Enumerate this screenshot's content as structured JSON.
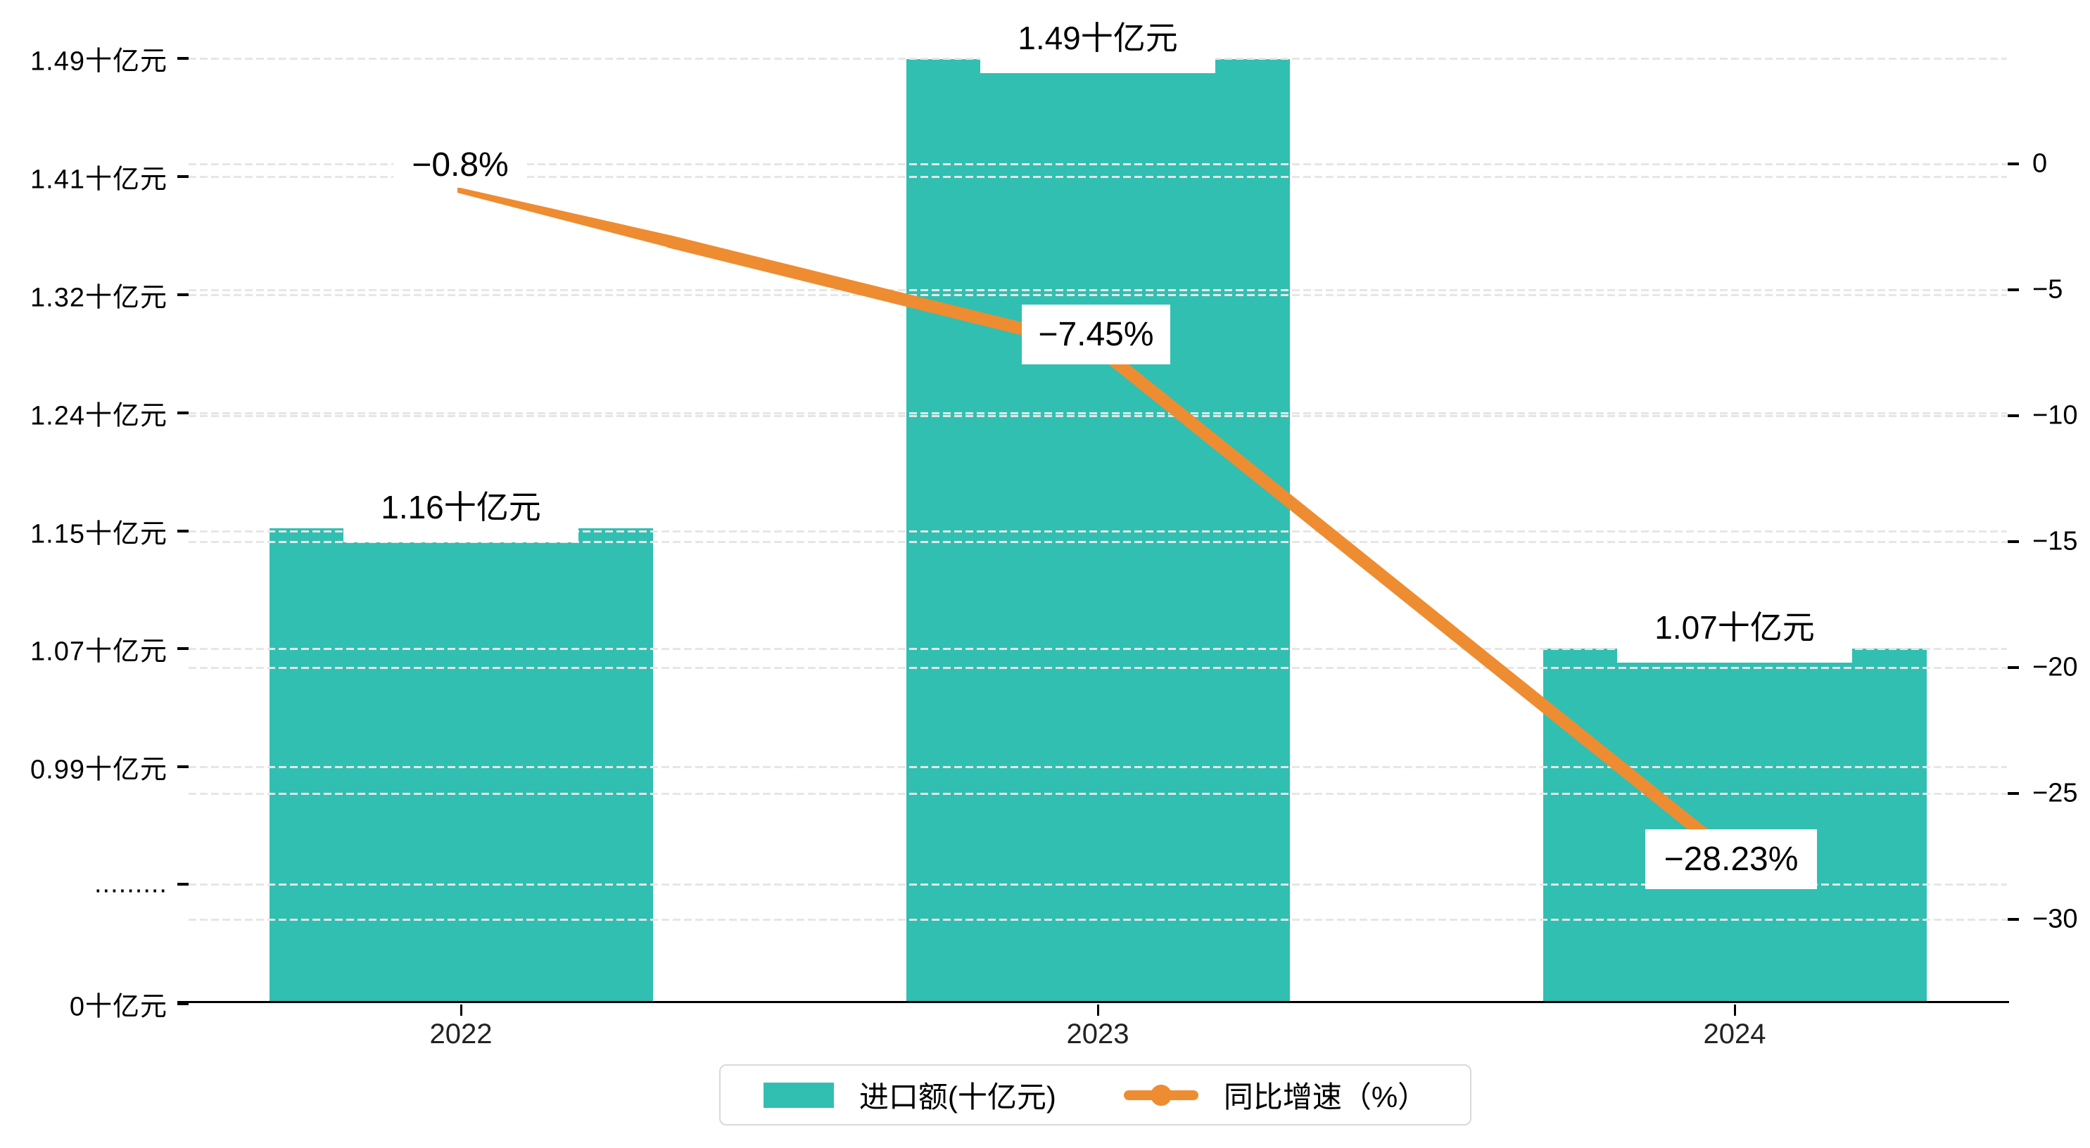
{
  "chart_data": {
    "type": "bar+line combo",
    "categories": [
      "2022",
      "2023",
      "2024"
    ],
    "series": [
      {
        "name": "进口额(十亿元)",
        "type": "bar",
        "values": [
          1.16,
          1.49,
          1.07
        ],
        "data_labels": [
          "1.16十亿元",
          "1.49十亿元",
          "1.07十亿元"
        ],
        "color": "#31bfb1"
      },
      {
        "name": "同比增速（%）",
        "type": "line",
        "values": [
          -0.8,
          -7.45,
          -28.23
        ],
        "data_labels": [
          "−0.8%",
          "−7.45%",
          "−28.23%"
        ],
        "color": "#ee8c31"
      }
    ],
    "left_axis": {
      "tick_labels": [
        "1.49十亿元",
        "1.41十亿元",
        "1.32十亿元",
        "1.24十亿元",
        "1.15十亿元",
        "1.07十亿元",
        "0.99十亿元",
        ".........",
        "0十亿元"
      ],
      "note": "broken axis, dots row marks the break",
      "unit": "十亿元"
    },
    "right_axis": {
      "tick_labels": [
        "0",
        "−5",
        "−10",
        "−15",
        "−20",
        "−25",
        "−30"
      ],
      "range": [
        0,
        -30
      ],
      "unit": "%"
    },
    "legend": [
      {
        "label": "进口额(十亿元)",
        "marker": "bar-swatch",
        "color": "#31bfb1"
      },
      {
        "label": "同比增速（%）",
        "marker": "line-dot",
        "color": "#ee8c31"
      }
    ],
    "grid": "dashed horizontal gridlines for both axes, drawn above bars",
    "colors": {
      "bar": "#31bfb1",
      "line": "#ee8c31",
      "gridline": "#e6e6e6",
      "axis": "#000000",
      "label_bg": "#ffffff"
    }
  }
}
